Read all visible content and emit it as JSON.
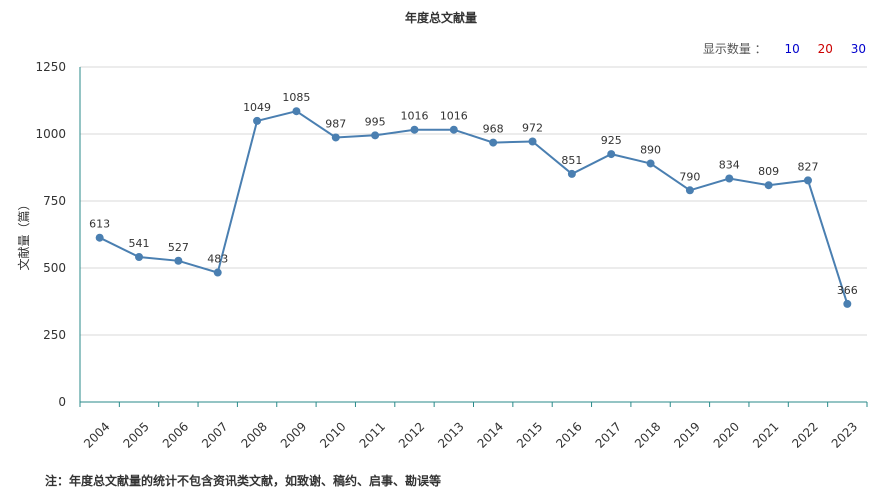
{
  "title": "年度总文献量",
  "display_count": {
    "label": "显示数量 ：",
    "options": [
      {
        "value": "10",
        "color": "#0000cc"
      },
      {
        "value": "20",
        "color": "#cc0000"
      },
      {
        "value": "30",
        "color": "#0000cc"
      }
    ]
  },
  "footnote": "注：年度总文献量的统计不包含资讯类文献，如致谢、稿约、启事、勘误等",
  "chart_data": {
    "type": "line",
    "title": "年度总文献量",
    "ylabel": "文献量（篇）",
    "xlabel": "",
    "ylim": [
      0,
      1250
    ],
    "yticks": [
      0,
      250,
      500,
      750,
      1000,
      1250
    ],
    "grid": true,
    "line_color": "#4a7fb1",
    "categories": [
      "2004",
      "2005",
      "2006",
      "2007",
      "2008",
      "2009",
      "2010",
      "2011",
      "2012",
      "2013",
      "2014",
      "2015",
      "2016",
      "2017",
      "2018",
      "2019",
      "2020",
      "2021",
      "2022",
      "2023"
    ],
    "values": [
      613,
      541,
      527,
      483,
      1049,
      1085,
      987,
      995,
      1016,
      1016,
      968,
      972,
      851,
      925,
      890,
      790,
      834,
      809,
      827,
      366
    ]
  }
}
